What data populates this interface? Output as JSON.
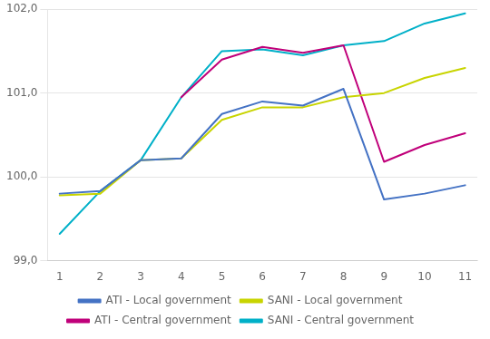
{
  "chart_data": {
    "type": "line",
    "x": [
      1,
      2,
      3,
      4,
      5,
      6,
      7,
      8,
      9,
      10,
      11
    ],
    "series": [
      {
        "name": "ATI - Local government",
        "color": "#4472c4",
        "values": [
          99.8,
          99.83,
          100.2,
          100.22,
          100.75,
          100.9,
          100.85,
          101.05,
          99.73,
          99.8,
          99.9
        ]
      },
      {
        "name": "SANI - Local government",
        "color": "#c8d400",
        "values": [
          99.78,
          99.8,
          100.2,
          100.22,
          100.68,
          100.83,
          100.83,
          100.95,
          101.0,
          101.18,
          101.3
        ]
      },
      {
        "name": "ATI - Central government",
        "color": "#c0007a",
        "values": [
          null,
          null,
          null,
          100.95,
          101.4,
          101.55,
          101.48,
          101.57,
          100.18,
          100.38,
          100.52
        ]
      },
      {
        "name": "SANI - Central government",
        "color": "#00b0c8",
        "values": [
          99.32,
          99.83,
          100.2,
          100.95,
          101.5,
          101.52,
          101.45,
          101.57,
          101.62,
          101.83,
          101.95
        ]
      }
    ],
    "xlim": [
      0.7,
      11.3
    ],
    "xticks": [
      1,
      2,
      3,
      4,
      5,
      6,
      7,
      8,
      9,
      10,
      11
    ],
    "ylim": [
      99.0,
      102.0
    ],
    "yticks": [
      {
        "value": 99.0,
        "label": "99,0"
      },
      {
        "value": 100.0,
        "label": "100,0"
      },
      {
        "value": 101.0,
        "label": "101,0"
      },
      {
        "value": 102.0,
        "label": "102,0"
      }
    ],
    "grid": "y",
    "legend": "bottom"
  }
}
